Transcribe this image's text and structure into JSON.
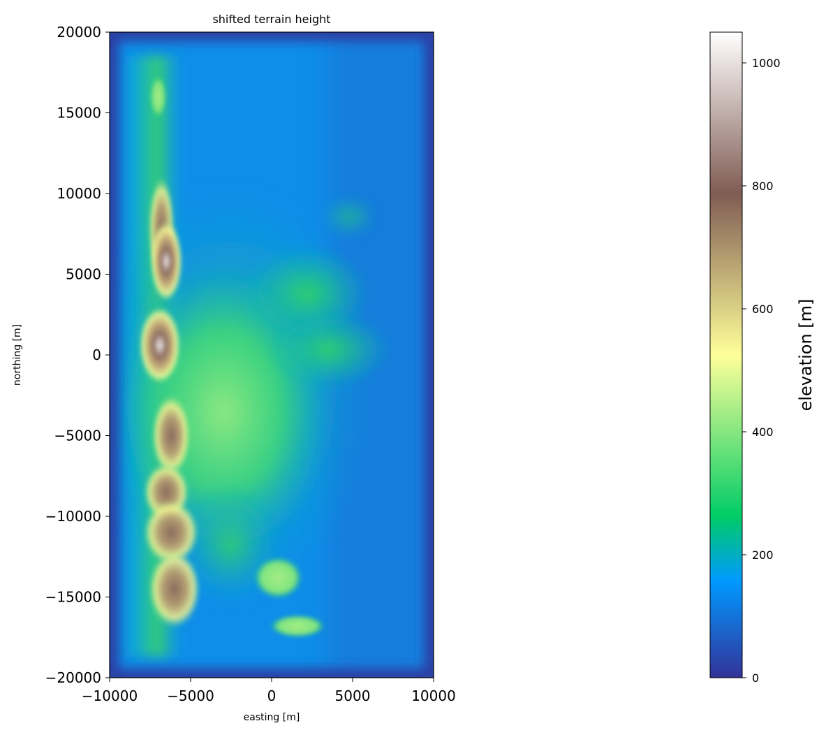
{
  "chart_data": {
    "type": "heatmap",
    "title": "shifted terrain height",
    "xlabel": "easting [m]",
    "ylabel": "northing [m]",
    "xlim": [
      -10000,
      10000
    ],
    "ylim": [
      -20000,
      20000
    ],
    "xticks": [
      -10000,
      -5000,
      0,
      5000,
      10000
    ],
    "xtick_labels": [
      "−10000",
      "−5000",
      "0",
      "5000",
      "10000"
    ],
    "yticks": [
      -20000,
      -15000,
      -10000,
      -5000,
      0,
      5000,
      10000,
      15000,
      20000
    ],
    "ytick_labels": [
      "−20000",
      "−15000",
      "−10000",
      "−5000",
      "0",
      "5000",
      "10000",
      "15000",
      "20000"
    ],
    "grid": false,
    "colormap": "terrain",
    "colorbar": {
      "label": "elevation [m]",
      "vmin": 0,
      "vmax": 1050,
      "ticks": [
        0,
        200,
        400,
        600,
        800,
        1000
      ],
      "tick_labels": [
        "0",
        "200",
        "400",
        "600",
        "800",
        "1000"
      ]
    },
    "terrain_features": [
      {
        "name": "ridge",
        "shape": "ellipse",
        "x": -6800,
        "y": 7800,
        "rx": 800,
        "ry": 3200,
        "elevation": 780
      },
      {
        "name": "ridge",
        "shape": "ellipse",
        "x": -6500,
        "y": 5800,
        "rx": 1000,
        "ry": 2500,
        "elevation": 880
      },
      {
        "name": "ridge",
        "shape": "ellipse",
        "x": -6900,
        "y": 600,
        "rx": 1300,
        "ry": 2400,
        "elevation": 900
      },
      {
        "name": "ridge",
        "shape": "ellipse",
        "x": -6200,
        "y": -5000,
        "rx": 1200,
        "ry": 2500,
        "elevation": 780
      },
      {
        "name": "ridge",
        "shape": "ellipse",
        "x": -6500,
        "y": -8500,
        "rx": 1400,
        "ry": 1800,
        "elevation": 760
      },
      {
        "name": "ridge",
        "shape": "ellipse",
        "x": -6200,
        "y": -11000,
        "rx": 1700,
        "ry": 2000,
        "elevation": 760
      },
      {
        "name": "ridge",
        "shape": "ellipse",
        "x": -6000,
        "y": -14500,
        "rx": 1600,
        "ry": 2400,
        "elevation": 740
      },
      {
        "name": "ridge",
        "shape": "ellipse",
        "x": -7000,
        "y": 16000,
        "rx": 500,
        "ry": 1300,
        "elevation": 280
      },
      {
        "name": "hill",
        "shape": "ellipse",
        "x": 400,
        "y": -13800,
        "rx": 1500,
        "ry": 1300,
        "elevation": 380
      },
      {
        "name": "hill",
        "shape": "ellipse",
        "x": 1600,
        "y": -16800,
        "rx": 1700,
        "ry": 700,
        "elevation": 320
      }
    ]
  }
}
